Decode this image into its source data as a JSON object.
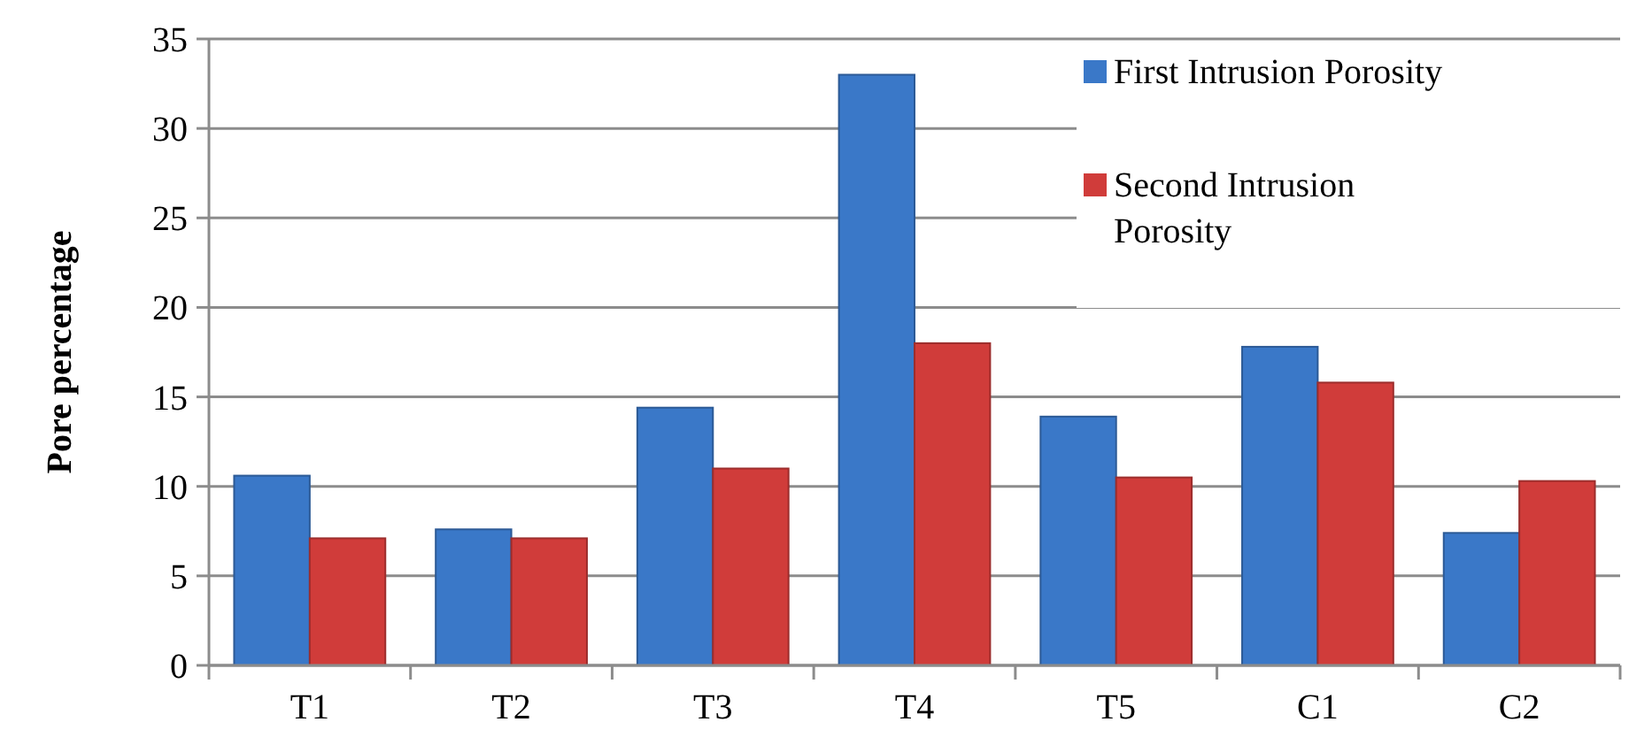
{
  "chart_data": {
    "type": "bar",
    "ylabel": "Pore percentage",
    "categories": [
      "T1",
      "T2",
      "T3",
      "T4",
      "T5",
      "C1",
      "C2"
    ],
    "series": [
      {
        "name": "First Intrusion Porosity",
        "color": "#3a78c8",
        "values": [
          10.6,
          7.6,
          14.4,
          33,
          13.9,
          17.8,
          7.4
        ]
      },
      {
        "name": "Second Intrusion Porosity",
        "color": "#d03c3a",
        "values": [
          7.1,
          7.1,
          11,
          18,
          10.5,
          15.8,
          10.3
        ]
      }
    ],
    "ylim": [
      0,
      35
    ],
    "yticks": [
      0,
      5,
      10,
      15,
      20,
      25,
      30,
      35
    ],
    "grid": "y",
    "legend": "top right"
  }
}
